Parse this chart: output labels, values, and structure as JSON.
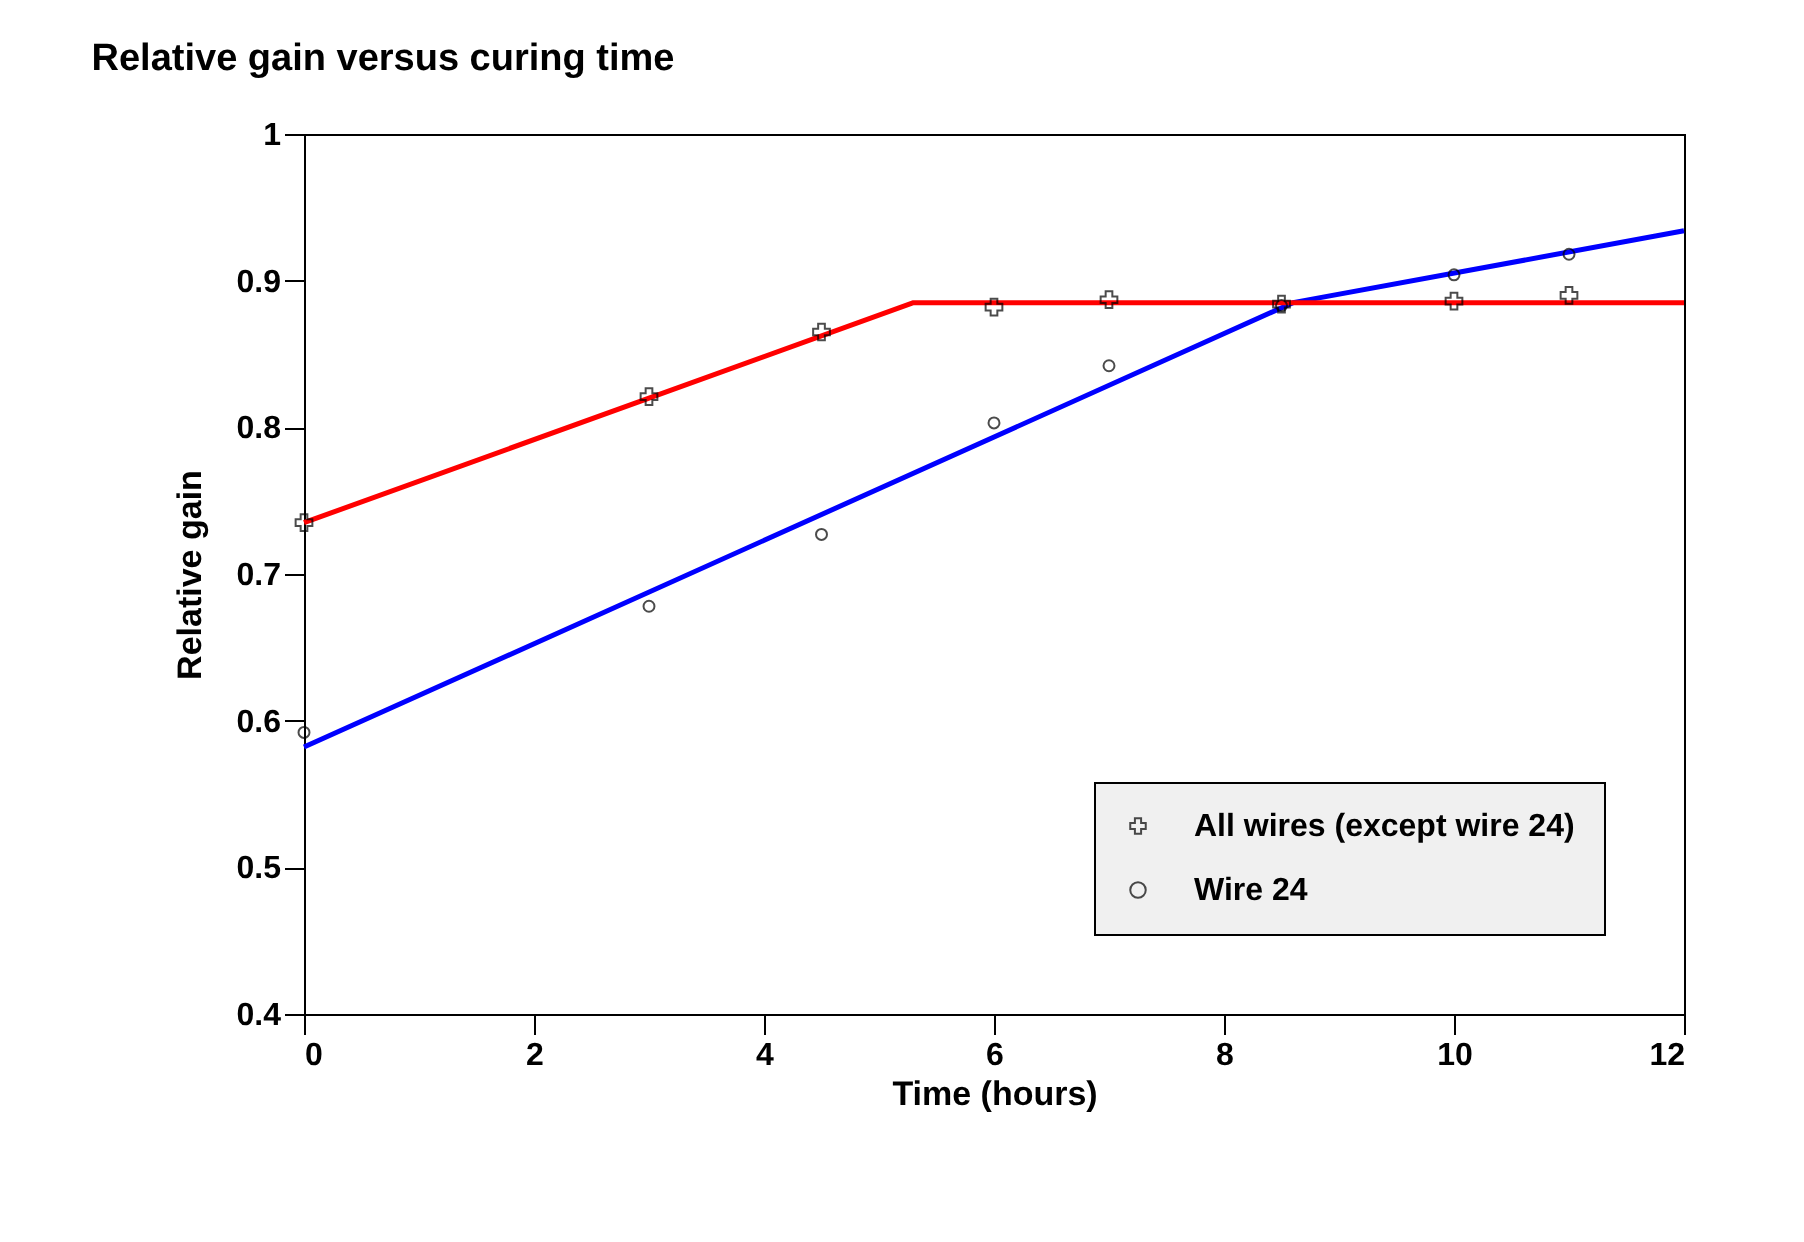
{
  "chart_data": {
    "type": "scatter",
    "title": "Relative gain versus curing time",
    "xlabel": "Time (hours)",
    "ylabel": "Relative gain",
    "xlim": [
      0,
      12
    ],
    "xticks": [
      0,
      2,
      4,
      6,
      8,
      10,
      12
    ],
    "ylim": [
      0.4,
      1
    ],
    "yticks": [
      0.4,
      0.5,
      0.6,
      0.7,
      0.8,
      0.9,
      1
    ],
    "grid": false,
    "legend": "bottom right",
    "series": [
      {
        "name": "All wires (except wire 24)",
        "marker": "cross",
        "color": "#000000",
        "x": [
          0,
          3,
          4.5,
          6,
          7,
          8.5,
          10,
          11
        ],
        "values": [
          0.735,
          0.821,
          0.865,
          0.882,
          0.887,
          0.884,
          0.886,
          0.89
        ]
      },
      {
        "name": "Wire 24",
        "marker": "circle",
        "color": "#000000",
        "x": [
          0,
          3,
          4.5,
          6,
          7,
          8.5,
          10,
          11
        ],
        "values": [
          0.592,
          0.678,
          0.727,
          0.803,
          0.842,
          0.883,
          0.904,
          0.918
        ]
      },
      {
        "type": "line",
        "marker": "none",
        "color": "#ff0000",
        "x": [
          0,
          5.3,
          12
        ],
        "values": [
          0.735,
          0.885,
          0.885
        ]
      },
      {
        "type": "line",
        "marker": "none",
        "color": "#0000ff",
        "x": [
          0,
          8.6,
          12
        ],
        "values": [
          0.582,
          0.885,
          0.934
        ]
      }
    ]
  }
}
